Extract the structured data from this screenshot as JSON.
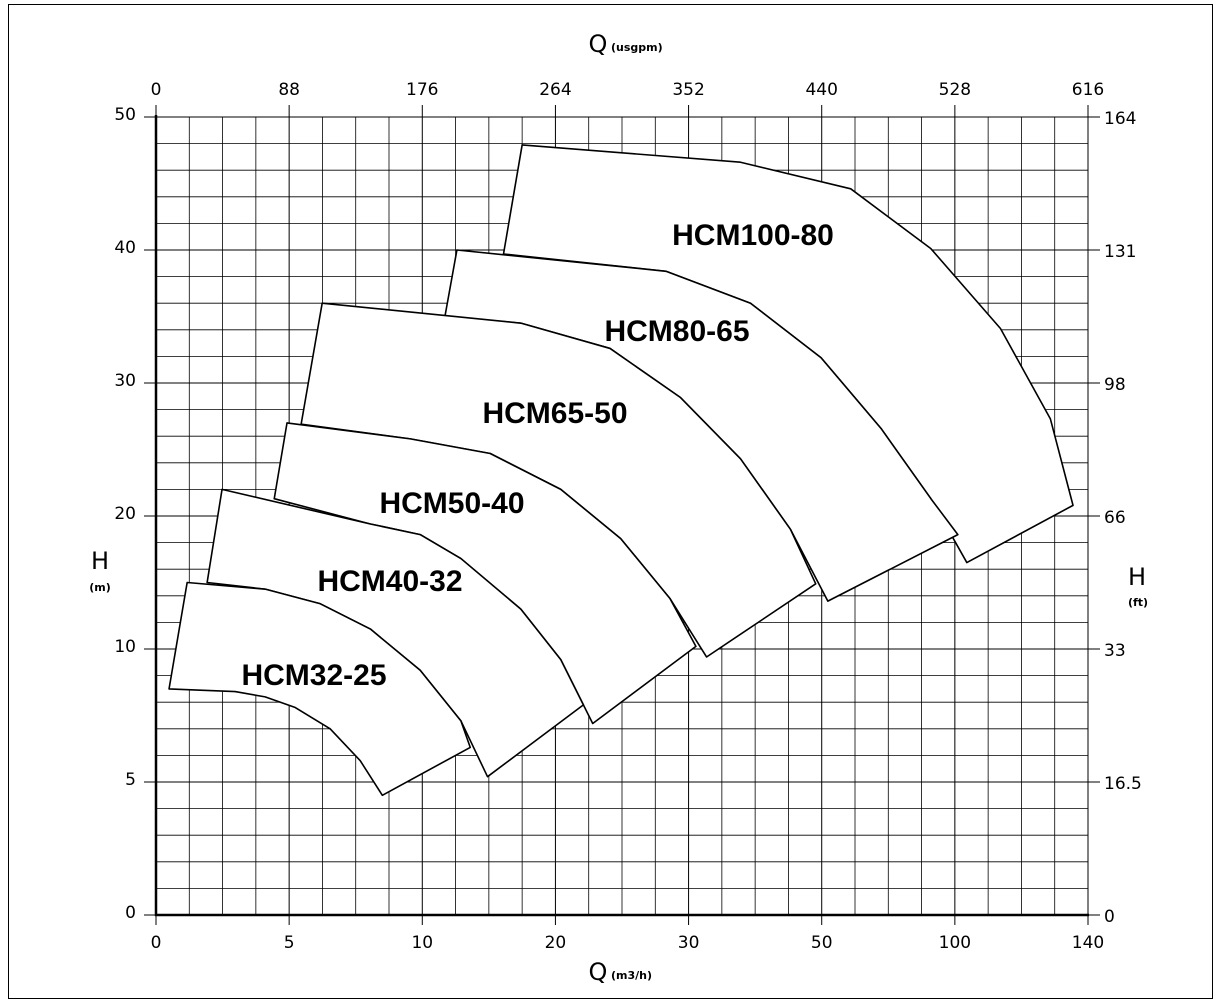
{
  "chart_data": {
    "type": "region",
    "x_axis_label": {
      "symbol": "Q",
      "unit": "(m3/h)"
    },
    "x2_axis_label": {
      "symbol": "Q",
      "unit": "(usgpm)"
    },
    "y_axis_label": {
      "symbol": "H",
      "unit": "(m)"
    },
    "y2_axis_label": {
      "symbol": "H",
      "unit": "(ft)"
    },
    "xlim": [
      0,
      140
    ],
    "xticks": [
      0,
      5,
      10,
      20,
      30,
      50,
      100,
      140
    ],
    "ylim": [
      0,
      50
    ],
    "yticks": [
      0,
      5,
      10,
      20,
      30,
      40,
      50
    ],
    "x2lim": [
      0,
      616
    ],
    "x2ticks": [
      0,
      88,
      176,
      264,
      352,
      440,
      528,
      616
    ],
    "y2lim": [
      0,
      164
    ],
    "y2ticks": [
      0,
      16.5,
      33,
      66,
      98,
      131,
      164
    ],
    "scale": "piecewise",
    "grid": true,
    "fill": "#ffffff",
    "stroke": "#000000",
    "series": [
      {
        "name": "HCM100-80",
        "x": [
          16.1,
          17.5,
          37.8,
          60.9,
          91,
          113.7,
          128.7,
          135.5,
          103.6,
          91,
          72.2,
          49.9,
          39.3,
          28.3
        ],
        "values": [
          39.7,
          47.9,
          46.6,
          44.6,
          40.1,
          34.1,
          27.3,
          20.8,
          16.5,
          21.3,
          26.6,
          31.9,
          36.0,
          38.4
        ]
      },
      {
        "name": "HCM80-65",
        "x": [
          11.7,
          12.6,
          28.3,
          39.3,
          49.9,
          72.2,
          91,
          100.9,
          52.3,
          45.3,
          37.8,
          29.4,
          24.1,
          17.4
        ],
        "values": [
          35.0,
          40.0,
          38.4,
          36.0,
          31.9,
          26.6,
          21.3,
          18.6,
          13.6,
          19.0,
          24.3,
          28.9,
          32.6,
          34.5
        ]
      },
      {
        "name": "HCM65-50",
        "x": [
          5.45,
          6.24,
          17.4,
          24.1,
          29.4,
          37.8,
          45.3,
          49.1,
          32.7,
          28.6,
          24.9,
          20.4,
          15.1,
          9.55
        ],
        "values": [
          26.9,
          36.0,
          34.5,
          32.6,
          28.9,
          24.3,
          19.0,
          14.9,
          9.7,
          13.8,
          18.3,
          22.0,
          24.7,
          25.8
        ]
      },
      {
        "name": "HCM50-40",
        "x": [
          4.44,
          4.92,
          9.55,
          15.1,
          20.4,
          24.9,
          28.6,
          31.1,
          22.8,
          20.4,
          17.4,
          12.9,
          9.92,
          8.05
        ],
        "values": [
          21.3,
          27.0,
          25.8,
          24.7,
          22.0,
          18.3,
          13.8,
          10.2,
          7.2,
          9.6,
          13.0,
          16.8,
          18.6,
          19.4
        ]
      },
      {
        "name": "HCM40-32",
        "x": [
          1.92,
          2.48,
          8.05,
          9.92,
          12.9,
          17.4,
          20.4,
          22.1,
          14.9,
          12.9,
          9.92,
          8.05,
          6.17,
          4.1
        ],
        "values": [
          15.0,
          22.0,
          19.4,
          18.6,
          16.8,
          13.0,
          9.6,
          7.9,
          5.2,
          7.3,
          9.2,
          11.5,
          13.4,
          14.5
        ]
      },
      {
        "name": "HCM32-25",
        "x": [
          0.49,
          1.17,
          4.1,
          6.17,
          8.05,
          9.92,
          12.9,
          13.6,
          8.5,
          7.67,
          6.54,
          5.23,
          4.1,
          2.97
        ],
        "values": [
          8.5,
          15.0,
          14.5,
          13.4,
          11.5,
          9.2,
          7.3,
          6.3,
          4.5,
          5.8,
          7.0,
          7.8,
          8.2,
          8.4
        ]
      }
    ]
  }
}
